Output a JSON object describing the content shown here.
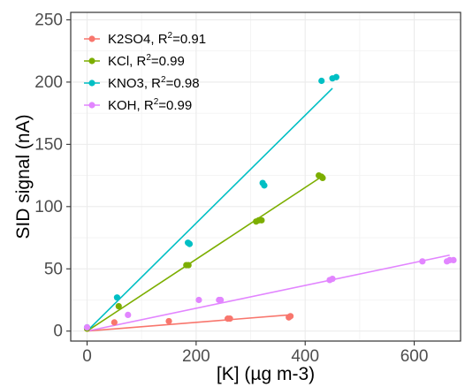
{
  "chart_data": {
    "type": "scatter",
    "xlabel": "[K] (µg m-3)",
    "ylabel": "SID signal (nA)",
    "xlim": [
      -30,
      685
    ],
    "ylim": [
      -8,
      256
    ],
    "x_ticks": [
      "0",
      "200",
      "400",
      "600"
    ],
    "y_ticks": [
      "0",
      "50",
      "100",
      "150",
      "200",
      "250"
    ],
    "grid": true,
    "legend_position": "top-left",
    "series": [
      {
        "name": "K2SO4",
        "r2_prefix": "K2SO4, R",
        "r2_suffix": "=0.91",
        "color": "#f8766d",
        "points": [
          [
            0,
            2
          ],
          [
            50,
            7
          ],
          [
            150,
            8
          ],
          [
            258,
            10
          ],
          [
            262,
            10
          ],
          [
            370,
            11
          ],
          [
            373,
            12
          ]
        ],
        "fit": [
          [
            0,
            0
          ],
          [
            370,
            13
          ]
        ]
      },
      {
        "name": "KCl",
        "r2_prefix": "KCl, R",
        "r2_suffix": "=0.99",
        "color": "#7cae00",
        "points": [
          [
            0,
            2
          ],
          [
            58,
            20
          ],
          [
            182,
            53
          ],
          [
            186,
            53
          ],
          [
            310,
            88
          ],
          [
            315,
            89
          ],
          [
            320,
            89
          ],
          [
            425,
            125
          ],
          [
            430,
            124
          ],
          [
            432,
            123
          ]
        ],
        "fit": [
          [
            0,
            0
          ],
          [
            430,
            124
          ]
        ]
      },
      {
        "name": "KNO3",
        "r2_prefix": "KNO3, R",
        "r2_suffix": "=0.98",
        "color": "#00bfc4",
        "points": [
          [
            0,
            3
          ],
          [
            55,
            27
          ],
          [
            185,
            71
          ],
          [
            188,
            70
          ],
          [
            322,
            119
          ],
          [
            325,
            117
          ],
          [
            430,
            201
          ],
          [
            450,
            203
          ],
          [
            457,
            204
          ]
        ],
        "fit": [
          [
            0,
            0
          ],
          [
            450,
            195
          ]
        ]
      },
      {
        "name": "KOH",
        "r2_prefix": "KOH, R",
        "r2_suffix": "=0.99",
        "color": "#e285ff",
        "points": [
          [
            0,
            3
          ],
          [
            75,
            13
          ],
          [
            205,
            25
          ],
          [
            242,
            25
          ],
          [
            245,
            25
          ],
          [
            445,
            41
          ],
          [
            450,
            42
          ],
          [
            615,
            56
          ],
          [
            660,
            56
          ],
          [
            665,
            57
          ],
          [
            672,
            57
          ]
        ],
        "fit": [
          [
            0,
            0
          ],
          [
            665,
            61
          ]
        ]
      }
    ]
  }
}
